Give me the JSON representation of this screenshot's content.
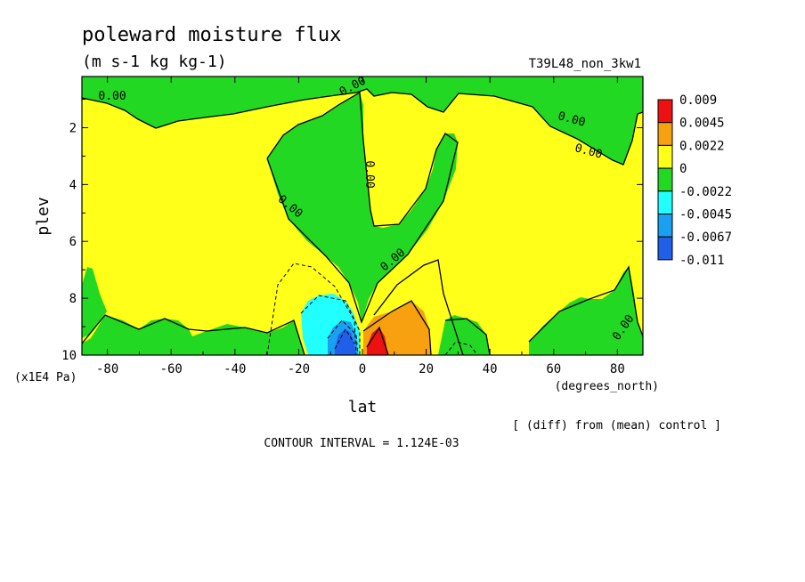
{
  "chart_data": {
    "type": "heatmap",
    "title": "poleward moisture flux",
    "subtitle": "(m s-1 kg kg-1)",
    "run_label": "T39L48_non_3kw1",
    "xlabel": "lat",
    "ylabel": "plev",
    "x_units": "(degrees_north)",
    "y_units": "(x1E4 Pa)",
    "note": "[ (diff) from (mean) control ]",
    "contour_interval_text": "CONTOUR INTERVAL = 1.124E-03",
    "xlim": [
      -88,
      88
    ],
    "ylim": [
      0.2,
      10
    ],
    "y_inverted": true,
    "x_ticks": [
      -80,
      -60,
      -40,
      -20,
      0,
      20,
      40,
      60,
      80
    ],
    "y_ticks": [
      2,
      4,
      6,
      8,
      10
    ],
    "zero_contour_labels": [
      "0.00",
      "0.00",
      "0.00",
      "0.00",
      "0.00",
      "0.00",
      "0.00",
      "0.00"
    ],
    "colorbar": {
      "levels": [
        "0.009",
        "0.0045",
        "0.0022",
        "0",
        "-0.0022",
        "-0.0045",
        "-0.0067",
        "-0.011"
      ],
      "colors": [
        "#ee1111",
        "#f7a010",
        "#ffff1a",
        "#22d822",
        "#22ffff",
        "#1aa0f0",
        "#2060e8"
      ]
    },
    "regions": [
      {
        "name": "positive-background",
        "sign": "positive",
        "color": "#ffff1a"
      },
      {
        "name": "negative-upper-band",
        "sign": "negative",
        "color": "#22d822"
      },
      {
        "name": "negative-tropical-wedge",
        "sign": "negative",
        "color": "#22d822"
      },
      {
        "name": "negative-southern-lower",
        "sign": "negative",
        "color": "#22d822"
      },
      {
        "name": "negative-polar-south",
        "sign": "negative",
        "color": "#22d822"
      },
      {
        "name": "negative-northern-lower",
        "sign": "negative",
        "color": "#22d822"
      },
      {
        "name": "negative-arctic-lower",
        "sign": "negative",
        "color": "#22d822"
      },
      {
        "name": "negative-south-core",
        "sign": "negative",
        "color": "#22ffff",
        "center": [
          -8,
          9.2
        ]
      },
      {
        "name": "negative-south-core-strong",
        "sign": "negative",
        "color": "#1aa0f0",
        "center": [
          -6,
          9.5
        ]
      },
      {
        "name": "negative-south-core-max",
        "sign": "negative",
        "color": "#2060e8",
        "center": [
          -5,
          9.7
        ]
      },
      {
        "name": "positive-north-core",
        "sign": "positive",
        "color": "#f7a010",
        "center": [
          10,
          9.2
        ]
      },
      {
        "name": "positive-north-core-max",
        "sign": "positive",
        "color": "#ee1111",
        "center": [
          6,
          9.6
        ]
      }
    ]
  }
}
